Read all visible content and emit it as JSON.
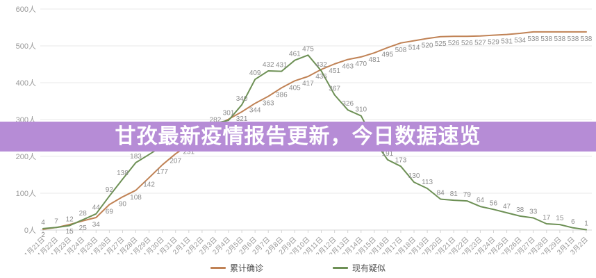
{
  "banner": {
    "title": "甘孜最新疫情报告更新，今日数据速览",
    "bg_color": "#b68cd6",
    "text_color": "#ffffff"
  },
  "chart_data": {
    "type": "line",
    "title": "",
    "xlabel": "",
    "ylabel": "",
    "ytick_suffix": "人",
    "yticks": [
      0,
      100,
      200,
      300,
      400,
      500,
      600
    ],
    "ylim": [
      0,
      600
    ],
    "grid": "horizontal",
    "legend_position": "bottom-center",
    "categories": [
      "1月21日",
      "1月22日",
      "1月23日",
      "1月24日",
      "1月25日",
      "1月26日",
      "1月27日",
      "1月28日",
      "1月29日",
      "1月30日",
      "1月31日",
      "2月1日",
      "2月2日",
      "2月3日",
      "2月4日",
      "2月5日",
      "2月6日",
      "2月7日",
      "2月8日",
      "2月9日",
      "2月10日",
      "2月11日",
      "2月12日",
      "2月13日",
      "2月14日",
      "2月15日",
      "2月16日",
      "2月17日",
      "2月18日",
      "2月19日",
      "2月20日",
      "2月21日",
      "2月22日",
      "2月23日",
      "2月24日",
      "2月25日",
      "2月26日",
      "2月27日",
      "2月28日",
      "2月29日",
      "3月1日",
      "3月2日"
    ],
    "series": [
      {
        "name": "累计确诊",
        "color": "#c08255",
        "label_position": "below",
        "label_above_indices": [
          13,
          14
        ],
        "values": [
          2,
          7,
          15,
          25,
          34,
          69,
          90,
          108,
          142,
          177,
          207,
          231,
          256,
          282,
          301,
          321,
          344,
          363,
          386,
          405,
          417,
          436,
          451,
          463,
          470,
          481,
          495,
          508,
          514,
          520,
          525,
          526,
          526,
          527,
          529,
          531,
          534,
          538,
          538,
          538,
          538,
          538
        ],
        "labels": [
          "2",
          null,
          "15",
          "25",
          "34",
          "69",
          "90",
          "108",
          "142",
          "177",
          "207",
          "231",
          "256",
          "282",
          "301",
          "321",
          "344",
          "363",
          "386",
          "405",
          "417",
          "436",
          "451",
          "463",
          "470",
          "481",
          "495",
          "508",
          "514",
          "520",
          "525",
          "526",
          "526",
          "527",
          "529",
          "531",
          "534",
          "538",
          "538",
          "538",
          "538",
          "538"
        ]
      },
      {
        "name": "现有疑似",
        "color": "#6d9055",
        "label_position": "above",
        "label_above_indices": [],
        "values": [
          4,
          7,
          12,
          28,
          44,
          92,
          138,
          183,
          205,
          228,
          248,
          268,
          280,
          290,
          298,
          340,
          409,
          432,
          431,
          461,
          475,
          432,
          367,
          326,
          310,
          243,
          191,
          173,
          130,
          113,
          84,
          81,
          79,
          64,
          56,
          47,
          38,
          33,
          17,
          15,
          6,
          1
        ],
        "labels": [
          "4",
          "7",
          "12",
          "28",
          "44",
          "92",
          "138",
          "183",
          null,
          null,
          null,
          "268",
          null,
          null,
          null,
          "340",
          "409",
          "432",
          "431",
          "461",
          "475",
          "432",
          "367",
          "326",
          "310",
          null,
          "191",
          "173",
          "130",
          "113",
          "84",
          "81",
          "79",
          "64",
          "56",
          "47",
          "38",
          "33",
          "17",
          "15",
          "6",
          "1"
        ]
      }
    ],
    "label_color": "#8c8c8c",
    "axis_text_color": "#999999",
    "grid_color": "#e8e8e8",
    "axis_line_color": "#d4d4d4"
  }
}
